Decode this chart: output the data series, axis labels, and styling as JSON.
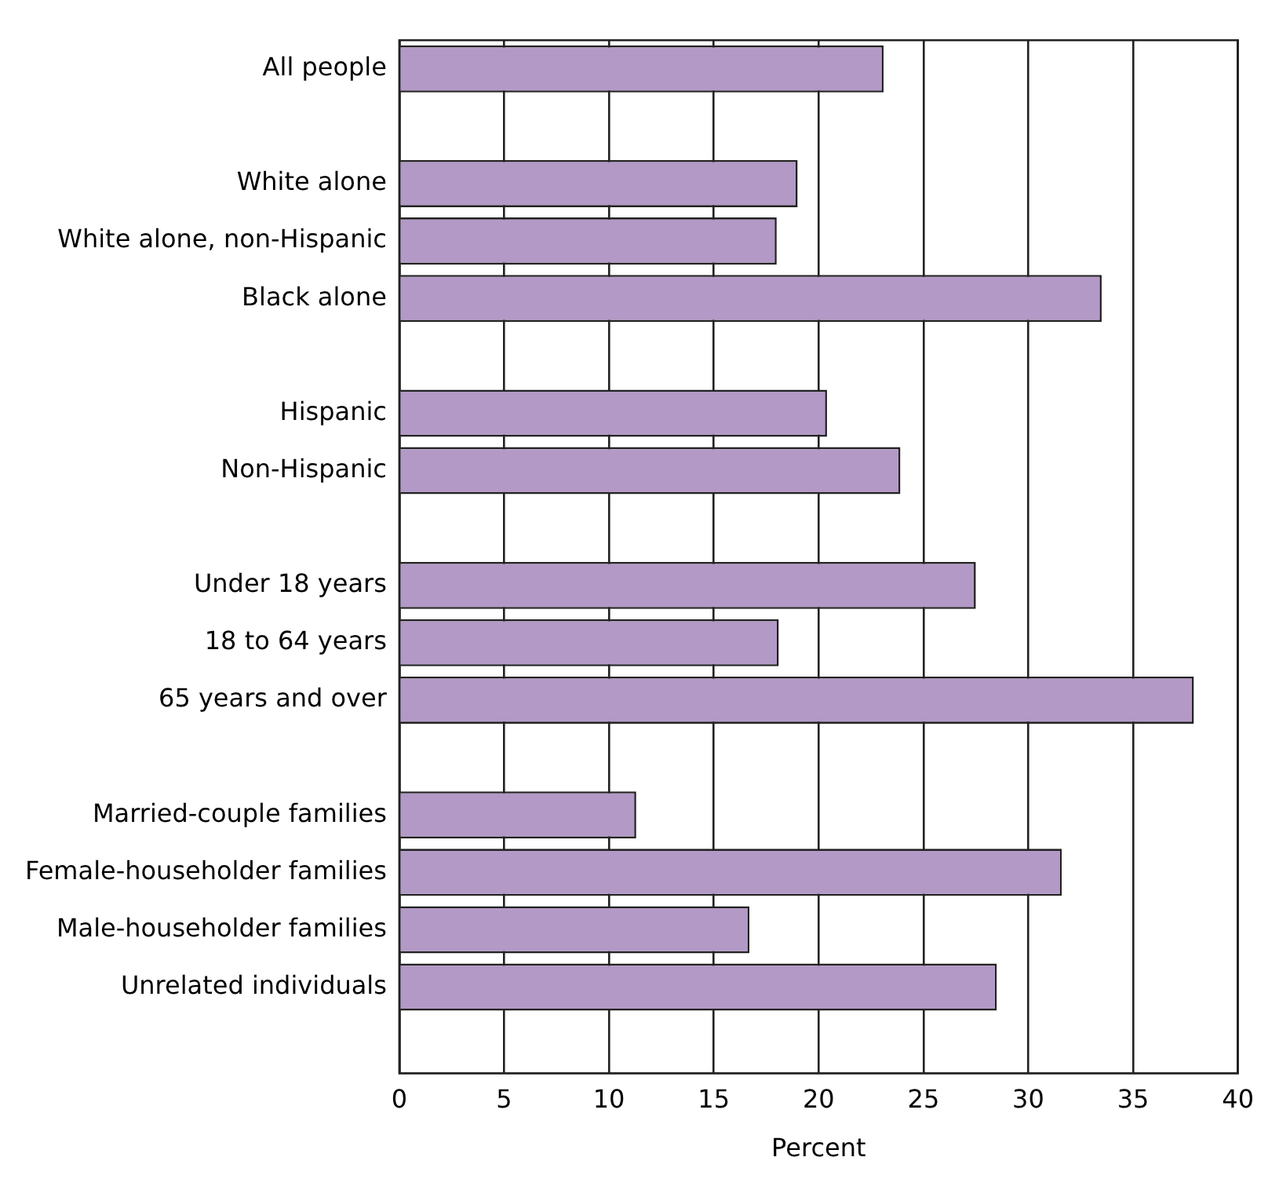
{
  "chart_data": {
    "type": "bar",
    "orientation": "horizontal",
    "xlabel": "Percent",
    "categories": [
      "All people",
      null,
      "White alone",
      "White alone, non-Hispanic",
      "Black alone",
      null,
      "Hispanic",
      "Non-Hispanic",
      null,
      "Under 18 years",
      "18 to 64 years",
      "65 years and over",
      null,
      "Married-couple families",
      "Female-householder families",
      "Male-householder families",
      "Unrelated individuals",
      null
    ],
    "values": [
      23.1,
      null,
      19.0,
      18.0,
      33.5,
      null,
      20.4,
      23.9,
      null,
      27.5,
      18.1,
      37.9,
      null,
      11.3,
      31.6,
      16.7,
      28.5,
      null
    ],
    "color": "#b399c6",
    "xlim": [
      0,
      40
    ],
    "xticks": [
      0,
      5,
      10,
      15,
      20,
      25,
      30,
      35,
      40
    ],
    "grid": "x",
    "legend": false
  }
}
